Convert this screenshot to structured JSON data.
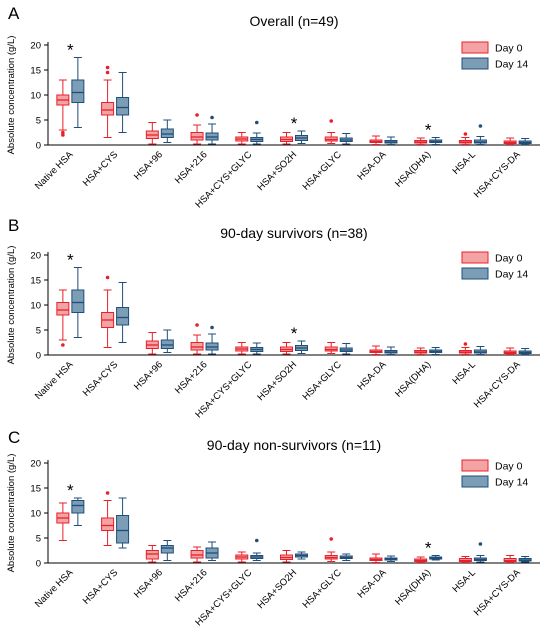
{
  "ylabel": "Absolute concentration (g/L)",
  "legend": {
    "day0": "Day 0",
    "day14": "Day 14"
  },
  "colors": {
    "day0_fill": "#f4a3a5",
    "day0_stroke": "#e8202a",
    "day14_fill": "#7b9db5",
    "day14_stroke": "#1f4e79"
  },
  "chart_data": [
    {
      "type": "box",
      "panel": "A",
      "title": "Overall (n=49)",
      "ylim": [
        0,
        20
      ],
      "yticks": [
        0,
        5,
        10,
        15,
        20
      ],
      "categories": [
        "Native HSA",
        "HSA+CYS",
        "HSA+96",
        "HSA+216",
        "HSA+CYS+GLYC",
        "HSA+SO2H",
        "HSA+GLYC",
        "HSA-DA",
        "HSA(DHA)",
        "HSA-L",
        "HSA+CYS-DA"
      ],
      "significant": [
        "Native HSA",
        "HSA+SO2H",
        "HSA(DHA)"
      ],
      "series": [
        {
          "name": "Day 0",
          "boxes": [
            {
              "min": 3,
              "q1": 8,
              "median": 9,
              "q3": 10,
              "max": 13,
              "outliers": [
                2,
                2.5
              ]
            },
            {
              "min": 1.5,
              "q1": 6,
              "median": 7,
              "q3": 8.5,
              "max": 13,
              "outliers": [
                15.5,
                14.5
              ]
            },
            {
              "min": 0.2,
              "q1": 1.3,
              "median": 2,
              "q3": 2.8,
              "max": 4.5,
              "outliers": []
            },
            {
              "min": 0.2,
              "q1": 1,
              "median": 1.6,
              "q3": 2.5,
              "max": 4,
              "outliers": [
                6
              ]
            },
            {
              "min": 0.2,
              "q1": 0.8,
              "median": 1.2,
              "q3": 1.6,
              "max": 2.5,
              "outliers": []
            },
            {
              "min": 0.2,
              "q1": 0.7,
              "median": 1.1,
              "q3": 1.6,
              "max": 2.5,
              "outliers": []
            },
            {
              "min": 0.3,
              "q1": 0.8,
              "median": 1.1,
              "q3": 1.6,
              "max": 2.5,
              "outliers": [
                4.8
              ]
            },
            {
              "min": 0.1,
              "q1": 0.5,
              "median": 0.7,
              "q3": 1,
              "max": 1.8,
              "outliers": []
            },
            {
              "min": 0.1,
              "q1": 0.4,
              "median": 0.6,
              "q3": 0.9,
              "max": 1.4,
              "outliers": []
            },
            {
              "min": 0.1,
              "q1": 0.4,
              "median": 0.6,
              "q3": 0.9,
              "max": 1.5,
              "outliers": [
                2.2
              ]
            },
            {
              "min": 0.1,
              "q1": 0.3,
              "median": 0.5,
              "q3": 0.8,
              "max": 1.4,
              "outliers": []
            }
          ]
        },
        {
          "name": "Day 14",
          "boxes": [
            {
              "min": 3.5,
              "q1": 8.5,
              "median": 10.5,
              "q3": 13,
              "max": 17.5,
              "outliers": []
            },
            {
              "min": 2.5,
              "q1": 6,
              "median": 7.5,
              "q3": 9.5,
              "max": 14.5,
              "outliers": []
            },
            {
              "min": 0.5,
              "q1": 1.5,
              "median": 2.2,
              "q3": 3.2,
              "max": 5,
              "outliers": []
            },
            {
              "min": 0.2,
              "q1": 1,
              "median": 1.6,
              "q3": 2.4,
              "max": 4.2,
              "outliers": [
                5.5
              ]
            },
            {
              "min": 0.2,
              "q1": 0.7,
              "median": 1.1,
              "q3": 1.5,
              "max": 2.4,
              "outliers": [
                4.5
              ]
            },
            {
              "min": 0.3,
              "q1": 0.9,
              "median": 1.4,
              "q3": 1.9,
              "max": 2.8,
              "outliers": []
            },
            {
              "min": 0.2,
              "q1": 0.7,
              "median": 1,
              "q3": 1.4,
              "max": 2.3,
              "outliers": []
            },
            {
              "min": 0.1,
              "q1": 0.4,
              "median": 0.6,
              "q3": 0.9,
              "max": 1.6,
              "outliers": []
            },
            {
              "min": 0.1,
              "q1": 0.5,
              "median": 0.7,
              "q3": 1,
              "max": 1.5,
              "outliers": []
            },
            {
              "min": 0.1,
              "q1": 0.4,
              "median": 0.6,
              "q3": 1,
              "max": 1.7,
              "outliers": [
                3.8
              ]
            },
            {
              "min": 0.1,
              "q1": 0.3,
              "median": 0.5,
              "q3": 0.8,
              "max": 1.3,
              "outliers": []
            }
          ]
        }
      ]
    },
    {
      "type": "box",
      "panel": "B",
      "title": "90-day survivors (n=38)",
      "ylim": [
        0,
        20
      ],
      "yticks": [
        0,
        5,
        10,
        15,
        20
      ],
      "categories": [
        "Native HSA",
        "HSA+CYS",
        "HSA+96",
        "HSA+216",
        "HSA+CYS+GLYC",
        "HSA+SO2H",
        "HSA+GLYC",
        "HSA-DA",
        "HSA(DHA)",
        "HSA-L",
        "HSA+CYS-DA"
      ],
      "significant": [
        "Native HSA",
        "HSA+SO2H"
      ],
      "series": [
        {
          "name": "Day 0",
          "boxes": [
            {
              "min": 3,
              "q1": 8,
              "median": 9,
              "q3": 10.5,
              "max": 13,
              "outliers": [
                2
              ]
            },
            {
              "min": 1.5,
              "q1": 5.5,
              "median": 7,
              "q3": 8.5,
              "max": 13,
              "outliers": [
                15.5
              ]
            },
            {
              "min": 0.2,
              "q1": 1.3,
              "median": 2,
              "q3": 2.8,
              "max": 4.5,
              "outliers": []
            },
            {
              "min": 0.2,
              "q1": 1,
              "median": 1.6,
              "q3": 2.5,
              "max": 4,
              "outliers": [
                6
              ]
            },
            {
              "min": 0.2,
              "q1": 0.8,
              "median": 1.2,
              "q3": 1.6,
              "max": 2.5,
              "outliers": []
            },
            {
              "min": 0.2,
              "q1": 0.7,
              "median": 1.1,
              "q3": 1.6,
              "max": 2.5,
              "outliers": []
            },
            {
              "min": 0.3,
              "q1": 0.8,
              "median": 1.1,
              "q3": 1.6,
              "max": 2.5,
              "outliers": []
            },
            {
              "min": 0.1,
              "q1": 0.5,
              "median": 0.7,
              "q3": 1,
              "max": 1.8,
              "outliers": []
            },
            {
              "min": 0.1,
              "q1": 0.4,
              "median": 0.6,
              "q3": 0.9,
              "max": 1.4,
              "outliers": []
            },
            {
              "min": 0.1,
              "q1": 0.4,
              "median": 0.6,
              "q3": 0.9,
              "max": 1.5,
              "outliers": [
                2.2
              ]
            },
            {
              "min": 0.1,
              "q1": 0.3,
              "median": 0.5,
              "q3": 0.8,
              "max": 1.4,
              "outliers": []
            }
          ]
        },
        {
          "name": "Day 14",
          "boxes": [
            {
              "min": 3.5,
              "q1": 8.5,
              "median": 10.5,
              "q3": 13,
              "max": 17.5,
              "outliers": []
            },
            {
              "min": 2.5,
              "q1": 6,
              "median": 7.5,
              "q3": 9.5,
              "max": 14.5,
              "outliers": []
            },
            {
              "min": 0.5,
              "q1": 1.3,
              "median": 2,
              "q3": 3,
              "max": 5,
              "outliers": []
            },
            {
              "min": 0.2,
              "q1": 1,
              "median": 1.6,
              "q3": 2.4,
              "max": 4.2,
              "outliers": [
                5.5
              ]
            },
            {
              "min": 0.2,
              "q1": 0.7,
              "median": 1.1,
              "q3": 1.5,
              "max": 2.4,
              "outliers": []
            },
            {
              "min": 0.3,
              "q1": 0.9,
              "median": 1.4,
              "q3": 1.9,
              "max": 2.8,
              "outliers": []
            },
            {
              "min": 0.2,
              "q1": 0.7,
              "median": 1,
              "q3": 1.4,
              "max": 2.3,
              "outliers": []
            },
            {
              "min": 0.1,
              "q1": 0.4,
              "median": 0.6,
              "q3": 0.9,
              "max": 1.6,
              "outliers": []
            },
            {
              "min": 0.1,
              "q1": 0.5,
              "median": 0.7,
              "q3": 1,
              "max": 1.5,
              "outliers": []
            },
            {
              "min": 0.1,
              "q1": 0.4,
              "median": 0.6,
              "q3": 1,
              "max": 1.7,
              "outliers": []
            },
            {
              "min": 0.1,
              "q1": 0.3,
              "median": 0.5,
              "q3": 0.8,
              "max": 1.3,
              "outliers": []
            }
          ]
        }
      ]
    },
    {
      "type": "box",
      "panel": "C",
      "title": "90-day non-survivors (n=11)",
      "ylim": [
        0,
        20
      ],
      "yticks": [
        0,
        5,
        10,
        15,
        20
      ],
      "categories": [
        "Native HSA",
        "HSA+CYS",
        "HSA+96",
        "HSA+216",
        "HSA+CYS+GLYC",
        "HSA+SO2H",
        "HSA+GLYC",
        "HSA-DA",
        "HSA(DHA)",
        "HSA-L",
        "HSA+CYS-DA"
      ],
      "significant": [
        "Native HSA",
        "HSA(DHA)"
      ],
      "series": [
        {
          "name": "Day 0",
          "boxes": [
            {
              "min": 4.5,
              "q1": 8,
              "median": 9,
              "q3": 10,
              "max": 12,
              "outliers": []
            },
            {
              "min": 3.5,
              "q1": 6.5,
              "median": 7.5,
              "q3": 9,
              "max": 12.5,
              "outliers": [
                14
              ]
            },
            {
              "min": 0.2,
              "q1": 0.8,
              "median": 1.8,
              "q3": 2.5,
              "max": 3.5,
              "outliers": []
            },
            {
              "min": 0.2,
              "q1": 1,
              "median": 1.6,
              "q3": 2.5,
              "max": 3.2,
              "outliers": []
            },
            {
              "min": 0.2,
              "q1": 0.8,
              "median": 1.2,
              "q3": 1.6,
              "max": 2.2,
              "outliers": []
            },
            {
              "min": 0.2,
              "q1": 0.7,
              "median": 1.1,
              "q3": 1.6,
              "max": 2.5,
              "outliers": []
            },
            {
              "min": 0.3,
              "q1": 0.8,
              "median": 1.1,
              "q3": 1.5,
              "max": 2.2,
              "outliers": [
                4.8
              ]
            },
            {
              "min": 0.1,
              "q1": 0.5,
              "median": 0.7,
              "q3": 1,
              "max": 1.8,
              "outliers": []
            },
            {
              "min": 0.1,
              "q1": 0.3,
              "median": 0.5,
              "q3": 0.8,
              "max": 1.2,
              "outliers": []
            },
            {
              "min": 0.1,
              "q1": 0.3,
              "median": 0.5,
              "q3": 0.9,
              "max": 1.3,
              "outliers": []
            },
            {
              "min": 0.1,
              "q1": 0.3,
              "median": 0.5,
              "q3": 0.9,
              "max": 1.5,
              "outliers": []
            }
          ]
        },
        {
          "name": "Day 14",
          "boxes": [
            {
              "min": 7.5,
              "q1": 10,
              "median": 11.5,
              "q3": 12.5,
              "max": 13,
              "outliers": []
            },
            {
              "min": 3,
              "q1": 4,
              "median": 6.5,
              "q3": 9.5,
              "max": 13,
              "outliers": []
            },
            {
              "min": 0.5,
              "q1": 2,
              "median": 3,
              "q3": 3.5,
              "max": 4.5,
              "outliers": []
            },
            {
              "min": 0.5,
              "q1": 1,
              "median": 2,
              "q3": 3,
              "max": 4.2,
              "outliers": []
            },
            {
              "min": 0.5,
              "q1": 0.9,
              "median": 1.2,
              "q3": 1.5,
              "max": 2,
              "outliers": [
                4.5
              ]
            },
            {
              "min": 0.8,
              "q1": 1.2,
              "median": 1.5,
              "q3": 1.8,
              "max": 2.2,
              "outliers": []
            },
            {
              "min": 0.5,
              "q1": 0.9,
              "median": 1.1,
              "q3": 1.4,
              "max": 1.8,
              "outliers": []
            },
            {
              "min": 0.3,
              "q1": 0.6,
              "median": 0.8,
              "q3": 1,
              "max": 1.4,
              "outliers": []
            },
            {
              "min": 0.6,
              "q1": 0.8,
              "median": 1,
              "q3": 1.2,
              "max": 1.5,
              "outliers": []
            },
            {
              "min": 0.2,
              "q1": 0.5,
              "median": 0.7,
              "q3": 1,
              "max": 1.5,
              "outliers": [
                3.8
              ]
            },
            {
              "min": 0.2,
              "q1": 0.4,
              "median": 0.6,
              "q3": 0.9,
              "max": 1.3,
              "outliers": []
            }
          ]
        }
      ]
    }
  ]
}
